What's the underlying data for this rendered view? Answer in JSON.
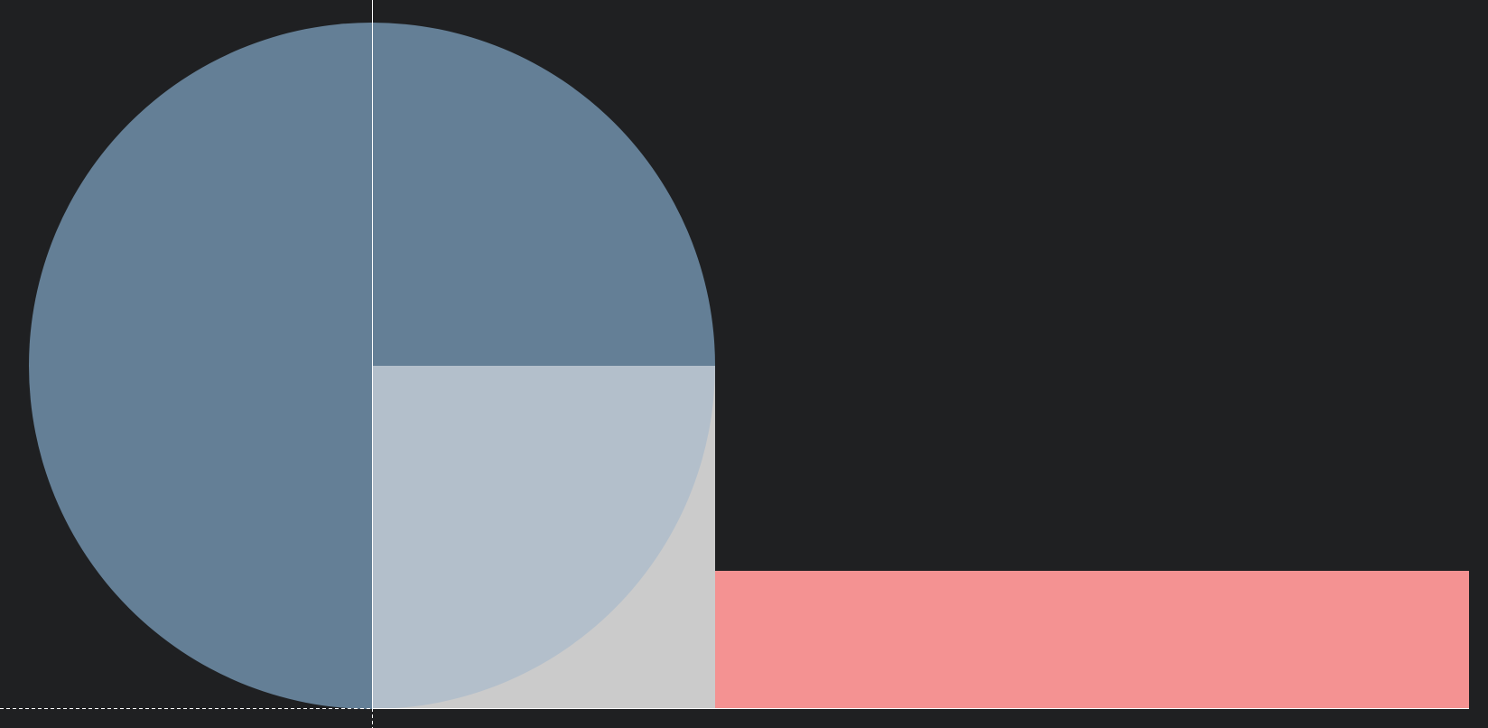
{
  "colors": {
    "background": "#1f2022",
    "circle_dark": "#647f96",
    "circle_light_quarter": "#b3bfcb",
    "grey_square": "#cbcbcb",
    "pink_bar": "#f49292",
    "guide_lines": "#ffffff"
  },
  "shapes": [
    "circle",
    "quarter-circle",
    "square",
    "bar",
    "guide-lines"
  ]
}
